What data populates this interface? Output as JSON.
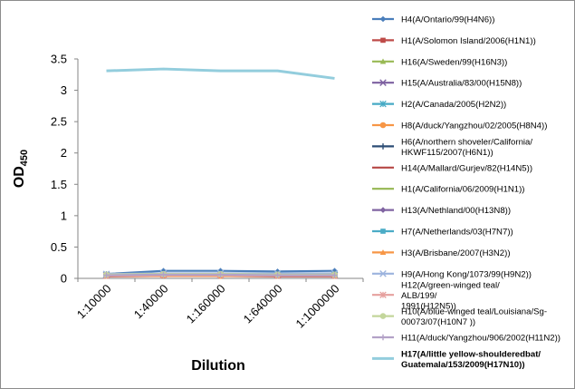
{
  "chart_data": {
    "type": "line",
    "xlabel": "Dilution",
    "ylabel": "OD",
    "ylabel_sub": "450",
    "ylim": [
      0,
      3.5
    ],
    "y_ticks": [
      "0",
      "0.5",
      "1",
      "1.5",
      "2",
      "2.5",
      "3",
      "3.5"
    ],
    "categories": [
      "1:10000",
      "1:40000",
      "1:160000",
      "1:640000",
      "1:1000000"
    ],
    "grid": false,
    "legend_position": "right",
    "series": [
      {
        "name": "H4(A/Ontario/99(H4N6))",
        "color": "#4a7ebb",
        "marker": "diamond",
        "values": [
          0.07,
          0.12,
          0.12,
          0.11,
          0.12
        ],
        "bold": false
      },
      {
        "name": "H1(A/Solomon Island/2006(H1N1))",
        "color": "#be4b48",
        "marker": "square",
        "values": [
          0.04,
          0.05,
          0.05,
          0.04,
          0.04
        ],
        "bold": false
      },
      {
        "name": "H16(A/Sweden/99(H16N3))",
        "color": "#98b954",
        "marker": "triangle",
        "values": [
          0.05,
          0.06,
          0.06,
          0.05,
          0.05
        ],
        "bold": false
      },
      {
        "name": "H15(A/Australia/83/00(H15N8))",
        "color": "#7d60a0",
        "marker": "x",
        "values": [
          0.05,
          0.06,
          0.05,
          0.05,
          0.05
        ],
        "bold": false
      },
      {
        "name": "H2(A/Canada/2005(H2N2))",
        "color": "#46aac5",
        "marker": "star",
        "values": [
          0.06,
          0.07,
          0.07,
          0.06,
          0.06
        ],
        "bold": false
      },
      {
        "name": "H8(A/duck/Yangzhou/02/2005(H8N4))",
        "color": "#f79646",
        "marker": "circle",
        "values": [
          0.04,
          0.05,
          0.04,
          0.04,
          0.04
        ],
        "bold": false
      },
      {
        "name": "H6(A/northern shoveler/California/ HKWF115/2007(H6N1))",
        "color": "#2c4d75",
        "marker": "plus",
        "values": [
          0.06,
          0.07,
          0.07,
          0.07,
          0.07
        ],
        "bold": false
      },
      {
        "name": "H14(A/Mallard/Gurjev/82(H14N5))",
        "color": "#b64744",
        "marker": "none",
        "values": [
          0.03,
          0.04,
          0.04,
          0.03,
          0.03
        ],
        "bold": false
      },
      {
        "name": "H1(A/California/06/2009(H1N1))",
        "color": "#95b751",
        "marker": "none",
        "values": [
          0.05,
          0.06,
          0.06,
          0.05,
          0.05
        ],
        "bold": false
      },
      {
        "name": "H13(A/Nethland/00(H13N8))",
        "color": "#8064a2",
        "marker": "diamond",
        "values": [
          0.05,
          0.05,
          0.05,
          0.05,
          0.05
        ],
        "bold": false
      },
      {
        "name": "H7(A/Netherlands/03(H7N7))",
        "color": "#4bacc6",
        "marker": "square",
        "values": [
          0.06,
          0.07,
          0.07,
          0.07,
          0.07
        ],
        "bold": false
      },
      {
        "name": "H3(A/Brisbane/2007(H3N2))",
        "color": "#f79646",
        "marker": "triangle",
        "values": [
          0.04,
          0.04,
          0.04,
          0.04,
          0.04
        ],
        "bold": false
      },
      {
        "name": "H9(A/Hong Kong/1073/99(H9N2))",
        "color": "#9cb3de",
        "marker": "x",
        "values": [
          0.07,
          0.08,
          0.08,
          0.08,
          0.08
        ],
        "bold": false
      },
      {
        "name": "H12(A/green-winged teal/ ALB/199/ 1991(H12N5))",
        "color": "#e6a09e",
        "marker": "star",
        "values": [
          0.04,
          0.05,
          0.05,
          0.04,
          0.04
        ],
        "bold": false
      },
      {
        "name": "H10(A/blue-winged teal/Louisiana/Sg- 00073/07(H10N7 ))",
        "color": "#c3d69b",
        "marker": "circle",
        "values": [
          0.06,
          0.07,
          0.07,
          0.06,
          0.06
        ],
        "bold": false
      },
      {
        "name": "H11(A/duck/Yangzhou/906/2002(H11N2))",
        "color": "#b3a2c7",
        "marker": "plus",
        "values": [
          0.05,
          0.06,
          0.06,
          0.05,
          0.05
        ],
        "bold": false
      },
      {
        "name": "H17(A/little yellow-shoulderedbat/ Guatemala/153/2009(H17N10))",
        "color": "#93cddd",
        "marker": "none",
        "values": [
          3.31,
          3.34,
          3.31,
          3.31,
          3.19
        ],
        "bold": true
      }
    ]
  }
}
